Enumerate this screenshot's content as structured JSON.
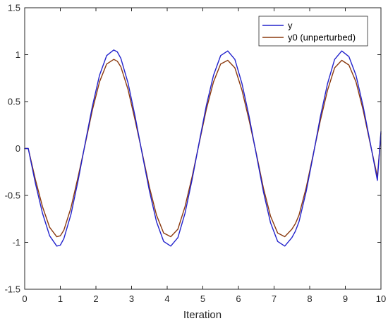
{
  "chart_data": {
    "type": "line",
    "xlabel": "Iteration",
    "ylabel": "",
    "title": "",
    "xlim": [
      0,
      10
    ],
    "ylim": [
      -1.5,
      1.5
    ],
    "x_ticks": [
      0,
      1,
      2,
      3,
      4,
      5,
      6,
      7,
      8,
      9,
      10
    ],
    "x_tick_labels": [
      "0",
      "1",
      "2",
      "3",
      "4",
      "5",
      "6",
      "7",
      "8",
      "9",
      "10"
    ],
    "y_ticks": [
      1.5,
      1,
      0.5,
      0,
      -0.5,
      -1,
      -1.5
    ],
    "y_tick_labels": [
      "1.5",
      "1",
      "0.5",
      "0",
      "-0.5",
      "-1",
      "-1.5"
    ],
    "grid": false,
    "legend_position": "top-right",
    "series": [
      {
        "name": "y",
        "color": "#2222cc",
        "x": [
          0,
          0.1,
          0.3,
          0.5,
          0.7,
          0.9,
          1.0,
          1.1,
          1.3,
          1.5,
          1.7,
          1.9,
          2.1,
          2.3,
          2.5,
          2.6,
          2.7,
          2.9,
          3.1,
          3.3,
          3.5,
          3.7,
          3.9,
          4.1,
          4.3,
          4.5,
          4.7,
          4.9,
          5.1,
          5.3,
          5.5,
          5.7,
          5.9,
          6.1,
          6.3,
          6.5,
          6.7,
          6.9,
          7.1,
          7.3,
          7.5,
          7.6,
          7.7,
          7.9,
          8.1,
          8.3,
          8.5,
          8.7,
          8.9,
          9.1,
          9.3,
          9.5,
          9.7,
          9.9,
          10.0
        ],
        "y": [
          0,
          0,
          -0.37,
          -0.69,
          -0.93,
          -1.04,
          -1.03,
          -0.96,
          -0.7,
          -0.34,
          0.06,
          0.45,
          0.78,
          0.99,
          1.05,
          1.03,
          0.96,
          0.7,
          0.34,
          -0.06,
          -0.45,
          -0.78,
          -0.99,
          -1.04,
          -0.95,
          -0.69,
          -0.33,
          0.07,
          0.46,
          0.78,
          0.99,
          1.04,
          0.95,
          0.69,
          0.34,
          -0.06,
          -0.46,
          -0.79,
          -0.99,
          -1.04,
          -0.95,
          -0.88,
          -0.78,
          -0.46,
          -0.07,
          0.34,
          0.69,
          0.95,
          1.04,
          0.98,
          0.78,
          0.45,
          0.06,
          -0.34,
          0.18
        ]
      },
      {
        "name": "y0 (unperturbed)",
        "color": "#8b3a0f",
        "x": [
          0,
          0.1,
          0.3,
          0.5,
          0.7,
          0.9,
          1.0,
          1.1,
          1.3,
          1.5,
          1.7,
          1.9,
          2.1,
          2.3,
          2.5,
          2.6,
          2.7,
          2.9,
          3.1,
          3.3,
          3.5,
          3.7,
          3.9,
          4.1,
          4.3,
          4.5,
          4.7,
          4.9,
          5.1,
          5.3,
          5.5,
          5.7,
          5.9,
          6.1,
          6.3,
          6.5,
          6.7,
          6.9,
          7.1,
          7.3,
          7.5,
          7.6,
          7.7,
          7.9,
          8.1,
          8.3,
          8.5,
          8.7,
          8.9,
          9.1,
          9.3,
          9.5,
          9.7,
          9.9,
          10.0
        ],
        "y": [
          0,
          0,
          -0.33,
          -0.62,
          -0.84,
          -0.94,
          -0.93,
          -0.87,
          -0.63,
          -0.3,
          0.05,
          0.41,
          0.71,
          0.9,
          0.95,
          0.93,
          0.87,
          0.63,
          0.3,
          -0.05,
          -0.41,
          -0.71,
          -0.9,
          -0.94,
          -0.86,
          -0.62,
          -0.3,
          0.06,
          0.42,
          0.71,
          0.9,
          0.94,
          0.86,
          0.62,
          0.3,
          -0.05,
          -0.42,
          -0.72,
          -0.9,
          -0.94,
          -0.86,
          -0.8,
          -0.71,
          -0.42,
          -0.06,
          0.3,
          0.62,
          0.86,
          0.94,
          0.89,
          0.71,
          0.41,
          0.05,
          -0.3,
          0.16
        ]
      }
    ]
  }
}
